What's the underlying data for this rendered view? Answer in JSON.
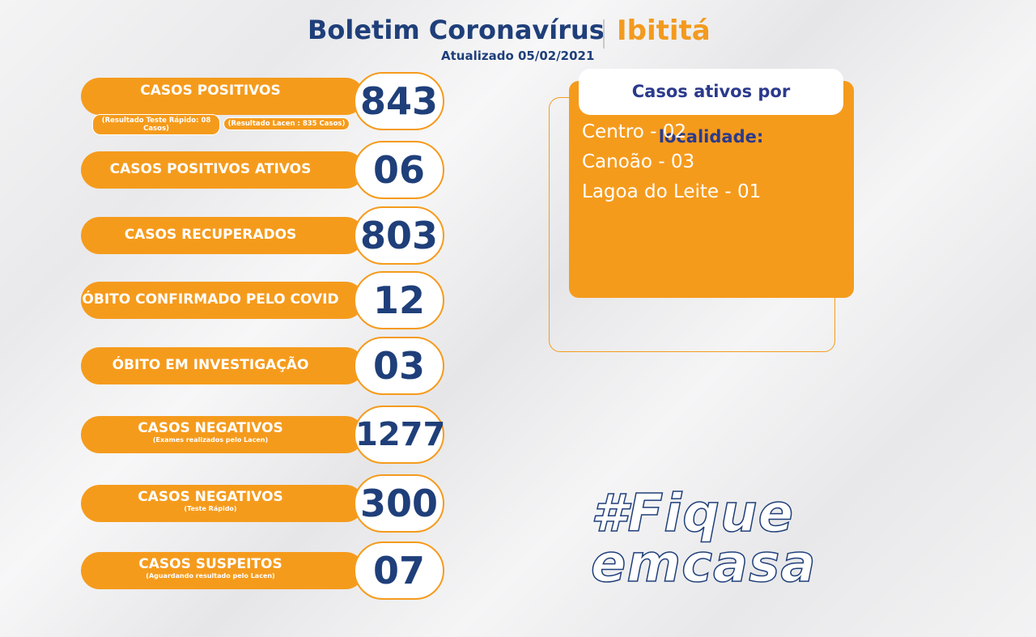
{
  "header": {
    "title": "Boletim Coronavírus",
    "location": "Ibititá",
    "updated": "Atualizado 05/02/2021"
  },
  "items": [
    {
      "label": "CASOS  POSITIVOS",
      "notes": [
        "(Resultado Teste Rápido: 08 Casos)",
        "(Resultado Lacen : 835 Casos)"
      ],
      "value": "843"
    },
    {
      "label": "CASOS POSITIVOS ATIVOS",
      "value": "06"
    },
    {
      "label": "CASOS RECUPERADOS",
      "value": "803"
    },
    {
      "label": "ÓBITO CONFIRMADO PELO COVID",
      "value": "12"
    },
    {
      "label": "ÓBITO EM INVESTIGAÇÃO",
      "value": "03"
    },
    {
      "label": "CASOS NEGATIVOS",
      "sub": "(Exames realizados pelo Lacen)",
      "value": "1277"
    },
    {
      "label": "CASOS NEGATIVOS",
      "sub": "(Teste Rápido)",
      "value": "300"
    },
    {
      "label": "CASOS SUSPEITOS",
      "sub": "(Aguardando resultado pelo Lacen)",
      "value": "07"
    }
  ],
  "panel": {
    "title": "Casos ativos por localidade:",
    "items": [
      "Centro - 02",
      "Canoão - 03",
      "Lagoa do Leite - 01"
    ]
  },
  "hashtag": [
    "#Fique",
    "emcasa"
  ]
}
